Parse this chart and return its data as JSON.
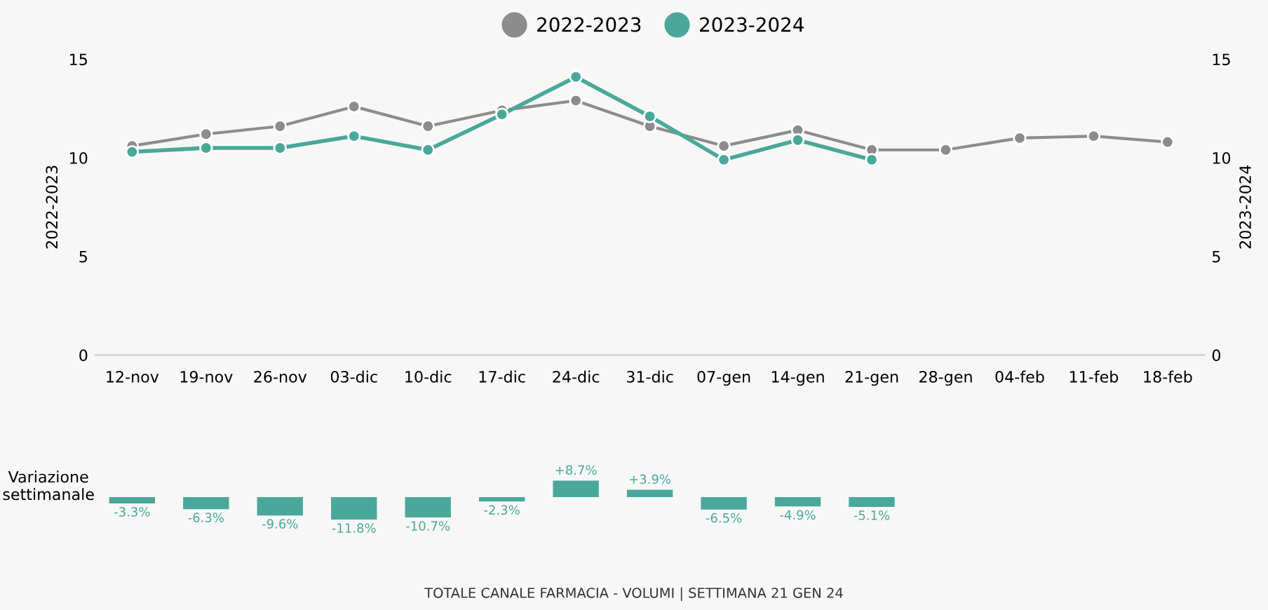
{
  "chart_data": [
    {
      "type": "line",
      "categories": [
        "12-nov",
        "19-nov",
        "26-nov",
        "03-dic",
        "10-dic",
        "17-dic",
        "24-dic",
        "31-dic",
        "07-gen",
        "14-gen",
        "21-gen",
        "28-gen",
        "04-feb",
        "11-feb",
        "18-feb"
      ],
      "series": [
        {
          "name": "2022-2023",
          "color": "#8c8c8c",
          "axis": "y",
          "values": [
            10.6,
            11.2,
            11.6,
            12.6,
            11.6,
            12.4,
            12.9,
            11.6,
            10.6,
            11.4,
            10.4,
            10.4,
            11.0,
            11.1,
            10.8
          ]
        },
        {
          "name": "2023-2024",
          "color": "#4aa89a",
          "axis": "y2",
          "values": [
            10.3,
            10.5,
            10.5,
            11.1,
            10.4,
            12.2,
            14.1,
            12.1,
            9.9,
            10.9,
            9.9,
            null,
            null,
            null,
            null
          ]
        }
      ],
      "ylabel": "2022-2023",
      "y2label": "2023-2024",
      "ylim": [
        0,
        15
      ],
      "yticks": [
        0,
        5,
        10,
        15
      ],
      "y2lim": [
        0,
        15
      ],
      "y2ticks": [
        0,
        5,
        10,
        15
      ],
      "legend": "top",
      "marker": "circle",
      "line_style": "solid",
      "grid": false
    },
    {
      "type": "bar",
      "categories": [
        null,
        null,
        null,
        null,
        null,
        null,
        null,
        null,
        null,
        null,
        null,
        null,
        null,
        null,
        null
      ],
      "ylabel": "Variazione\nsettimanale",
      "color": "#4aa89a",
      "values": [
        -3.3,
        -6.3,
        -9.6,
        -11.8,
        -10.7,
        -2.3,
        8.7,
        3.9,
        -6.5,
        -4.9,
        -5.1,
        null,
        null,
        null,
        null
      ],
      "value_labels": [
        "-3.3%",
        "-6.3%",
        "-9.6%",
        "-11.8%",
        "-10.7%",
        "-2.3%",
        "+8.7%",
        "+3.9%",
        "-6.5%",
        "-4.9%",
        "-5.1%",
        null,
        null,
        null,
        null
      ],
      "annotations": [
        "TOTALE CANALE FARMACIA - VOLUMI | SETTIMANA 21 GEN 24"
      ]
    }
  ]
}
